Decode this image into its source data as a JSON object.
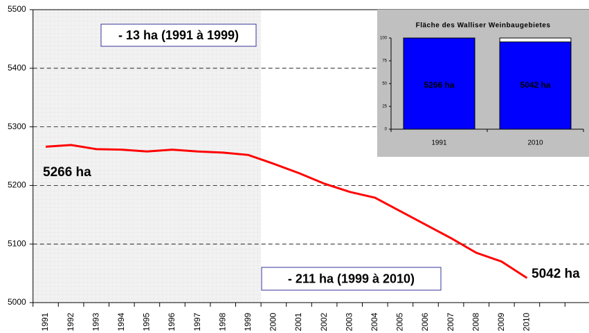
{
  "chart_data": [
    {
      "type": "line",
      "categories": [
        "1991",
        "1992",
        "1993",
        "1994",
        "1995",
        "1996",
        "1997",
        "1998",
        "1999",
        "2000",
        "2001",
        "2002",
        "2003",
        "2004",
        "2005",
        "2006",
        "2007",
        "2008",
        "2009",
        "2010"
      ],
      "series": [
        {
          "color": "#ff0000",
          "values": [
            5266,
            5269,
            5262,
            5261,
            5258,
            5261,
            5258,
            5256,
            5252,
            5237,
            5221,
            5203,
            5189,
            5179,
            5156,
            5133,
            5110,
            5085,
            5070,
            5042
          ]
        }
      ],
      "ylim": [
        5000,
        5500
      ],
      "yticks": [
        5000,
        5100,
        5200,
        5300,
        5400,
        5500
      ],
      "grid": true,
      "annotations": [
        "- 13 ha (1991 à 1999)",
        "- 211 ha (1999 à 2010)",
        "5266 ha",
        "5042 ha"
      ]
    },
    {
      "type": "bar",
      "title": "Fläche des Walliser Weinbaugebietes",
      "categories": [
        "1991",
        "2010"
      ],
      "values": [
        100,
        95.7
      ],
      "color": "#0000ff",
      "ylim": [
        0,
        100
      ],
      "yticks": [
        0,
        25,
        50,
        75,
        100
      ],
      "annotations": [
        "5266 ha",
        "5042 ha"
      ]
    }
  ]
}
